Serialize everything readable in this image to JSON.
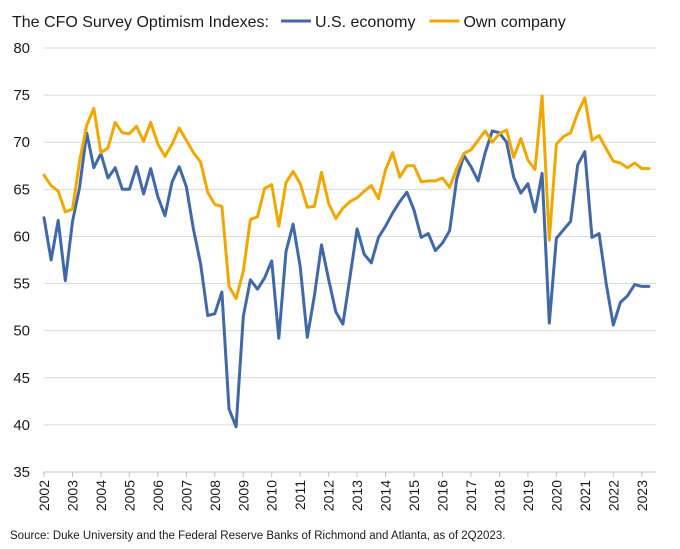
{
  "chart_data": {
    "type": "line",
    "title": "The CFO Survey Optimism Indexes:",
    "source": "Source: Duke University and the Federal Reserve Banks of Richmond and Atlanta, as of 2Q2023.",
    "ylim": [
      35,
      80
    ],
    "yticks": [
      35,
      40,
      45,
      50,
      55,
      60,
      65,
      70,
      75,
      80
    ],
    "xlim": [
      2002.0,
      2023.5
    ],
    "xticks": [
      "2002",
      "2003",
      "2004",
      "2005",
      "2006",
      "2007",
      "2008",
      "2009",
      "2010",
      "2011",
      "2012",
      "2013",
      "2014",
      "2015",
      "2016",
      "2017",
      "2018",
      "2019",
      "2020",
      "2021",
      "2022",
      "2023"
    ],
    "grid": true,
    "legend_position": "top",
    "series": [
      {
        "name": "U.S. economy",
        "color": "#4169a8",
        "x": [
          2002.0,
          2002.25,
          2002.5,
          2002.75,
          2003.0,
          2003.25,
          2003.5,
          2003.75,
          2004.0,
          2004.25,
          2004.5,
          2004.75,
          2005.0,
          2005.25,
          2005.5,
          2005.75,
          2006.0,
          2006.25,
          2006.5,
          2006.75,
          2007.0,
          2007.25,
          2007.5,
          2007.75,
          2008.0,
          2008.25,
          2008.5,
          2008.75,
          2009.0,
          2009.25,
          2009.5,
          2009.75,
          2010.0,
          2010.25,
          2010.5,
          2010.75,
          2011.0,
          2011.25,
          2011.5,
          2011.75,
          2012.0,
          2012.25,
          2012.5,
          2012.75,
          2013.0,
          2013.25,
          2013.5,
          2013.75,
          2014.0,
          2014.25,
          2014.5,
          2014.75,
          2015.0,
          2015.25,
          2015.5,
          2015.75,
          2016.0,
          2016.25,
          2016.5,
          2016.75,
          2017.0,
          2017.25,
          2017.5,
          2017.75,
          2018.0,
          2018.25,
          2018.5,
          2018.75,
          2019.0,
          2019.25,
          2019.5,
          2019.75,
          2020.0,
          2020.25,
          2020.5,
          2020.75,
          2021.0,
          2021.25,
          2021.5,
          2021.75,
          2022.0,
          2022.25,
          2022.5,
          2022.75,
          2023.0,
          2023.25
        ],
        "values": [
          62.0,
          57.5,
          61.7,
          55.3,
          61.6,
          65.2,
          71.0,
          67.3,
          68.8,
          66.2,
          67.3,
          65.0,
          65.0,
          67.4,
          64.5,
          67.2,
          64.2,
          62.2,
          65.8,
          67.4,
          65.3,
          60.8,
          57.1,
          51.6,
          51.8,
          54.1,
          41.7,
          39.8,
          51.5,
          55.4,
          54.4,
          55.6,
          57.4,
          49.2,
          58.4,
          61.3,
          56.8,
          49.3,
          53.7,
          59.1,
          55.4,
          52.0,
          50.7,
          55.7,
          60.8,
          58.1,
          57.2,
          59.9,
          61.1,
          62.5,
          63.7,
          64.7,
          62.8,
          59.9,
          60.3,
          58.5,
          59.3,
          60.6,
          66.1,
          68.6,
          67.4,
          65.9,
          68.9,
          71.2,
          71.0,
          70.0,
          66.3,
          64.6,
          65.6,
          62.6,
          66.7,
          50.8,
          59.8,
          60.7,
          61.6,
          67.6,
          69.0,
          59.9,
          60.3,
          55.0,
          50.6,
          53.0,
          53.7,
          54.9,
          54.7,
          54.7
        ]
      },
      {
        "name": "Own company",
        "color": "#f0a800",
        "x": [
          2002.0,
          2002.25,
          2002.5,
          2002.75,
          2003.0,
          2003.25,
          2003.5,
          2003.75,
          2004.0,
          2004.25,
          2004.5,
          2004.75,
          2005.0,
          2005.25,
          2005.5,
          2005.75,
          2006.0,
          2006.25,
          2006.5,
          2006.75,
          2007.0,
          2007.25,
          2007.5,
          2007.75,
          2008.0,
          2008.25,
          2008.5,
          2008.75,
          2009.0,
          2009.25,
          2009.5,
          2009.75,
          2010.0,
          2010.25,
          2010.5,
          2010.75,
          2011.0,
          2011.25,
          2011.5,
          2011.75,
          2012.0,
          2012.25,
          2012.5,
          2012.75,
          2013.0,
          2013.25,
          2013.5,
          2013.75,
          2014.0,
          2014.25,
          2014.5,
          2014.75,
          2015.0,
          2015.25,
          2015.5,
          2015.75,
          2016.0,
          2016.25,
          2016.5,
          2016.75,
          2017.0,
          2017.25,
          2017.5,
          2017.75,
          2018.0,
          2018.25,
          2018.5,
          2018.75,
          2019.0,
          2019.25,
          2019.5,
          2019.75,
          2020.0,
          2020.25,
          2020.5,
          2020.75,
          2021.0,
          2021.25,
          2021.5,
          2021.75,
          2022.0,
          2022.25,
          2022.5,
          2022.75,
          2023.0,
          2023.25
        ],
        "values": [
          66.5,
          65.4,
          64.8,
          62.6,
          62.9,
          68.0,
          71.8,
          73.6,
          68.9,
          69.4,
          72.1,
          71.0,
          70.9,
          71.7,
          70.1,
          72.1,
          69.8,
          68.5,
          69.8,
          71.5,
          70.2,
          68.9,
          67.9,
          64.7,
          63.4,
          63.2,
          54.7,
          53.4,
          56.3,
          61.8,
          62.1,
          65.1,
          65.5,
          61.1,
          65.7,
          66.9,
          65.6,
          63.1,
          63.2,
          66.8,
          63.5,
          61.9,
          63.0,
          63.7,
          64.1,
          64.8,
          65.4,
          64.0,
          67.1,
          68.9,
          66.3,
          67.5,
          67.5,
          65.8,
          65.9,
          65.9,
          66.2,
          65.2,
          67.2,
          68.8,
          69.2,
          70.2,
          71.2,
          70.0,
          70.9,
          71.3,
          68.4,
          70.4,
          68.1,
          67.1,
          74.9,
          59.6,
          69.8,
          70.6,
          71.0,
          73.1,
          74.7,
          70.2,
          70.7,
          69.3,
          68.0,
          67.8,
          67.3,
          67.8,
          67.2,
          67.2
        ]
      }
    ]
  }
}
